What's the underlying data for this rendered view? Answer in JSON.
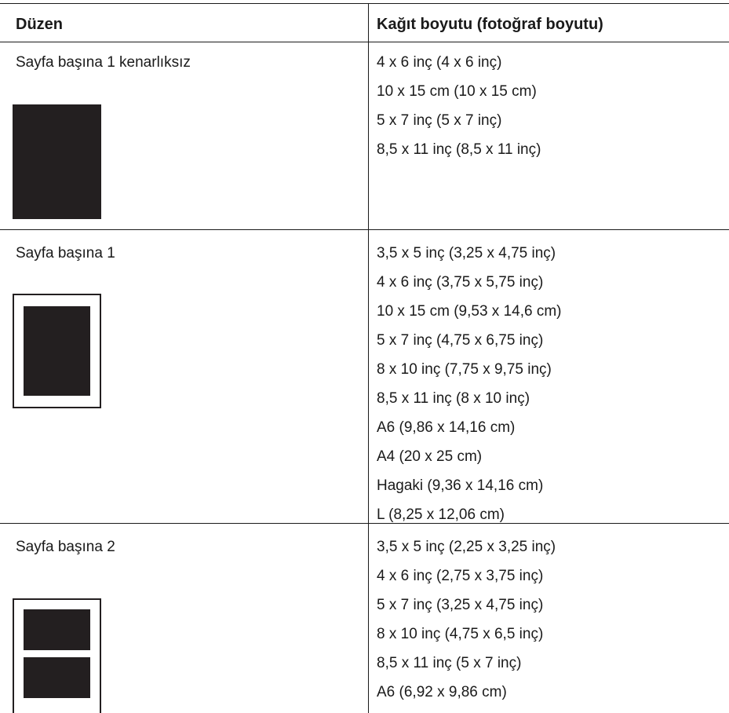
{
  "header": {
    "layout_col": "Düzen",
    "paper_col": "Kağıt boyutu (fotoğraf boyutu)"
  },
  "rows": [
    {
      "layout": "Sayfa başına 1 kenarlıksız",
      "icon": "borderless-one-photo-icon",
      "sizes": [
        "4 x 6 inç (4 x 6 inç)",
        "10 x 15 cm (10 x 15 cm)",
        "5 x 7 inç (5 x 7 inç)",
        "8,5 x 11 inç (8,5 x 11 inç)"
      ]
    },
    {
      "layout": "Sayfa başına 1",
      "icon": "bordered-one-photo-icon",
      "sizes": [
        "3,5 x 5 inç (3,25 x 4,75 inç)",
        "4 x 6 inç (3,75 x 5,75 inç)",
        "10 x 15 cm (9,53 x 14,6 cm)",
        "5 x 7 inç (4,75 x 6,75 inç)",
        "8 x 10 inç (7,75 x 9,75 inç)",
        "8,5 x 11 inç (8 x 10 inç)",
        "A6 (9,86 x 14,16 cm)",
        "A4 (20 x 25 cm)",
        "Hagaki (9,36 x 14,16 cm)",
        "L (8,25 x 12,06 cm)"
      ]
    },
    {
      "layout": "Sayfa başına 2",
      "icon": "two-photos-per-page-icon",
      "sizes": [
        "3,5 x 5 inç (2,25 x 3,25 inç)",
        "4 x 6 inç (2,75 x 3,75 inç)",
        "5 x 7 inç (3,25 x 4,75 inç)",
        "8 x 10 inç (4,75 x 6,5 inç)",
        "8,5 x 11 inç (5 x 7 inç)",
        "A6 (6,92 x 9,86 cm)"
      ]
    }
  ]
}
